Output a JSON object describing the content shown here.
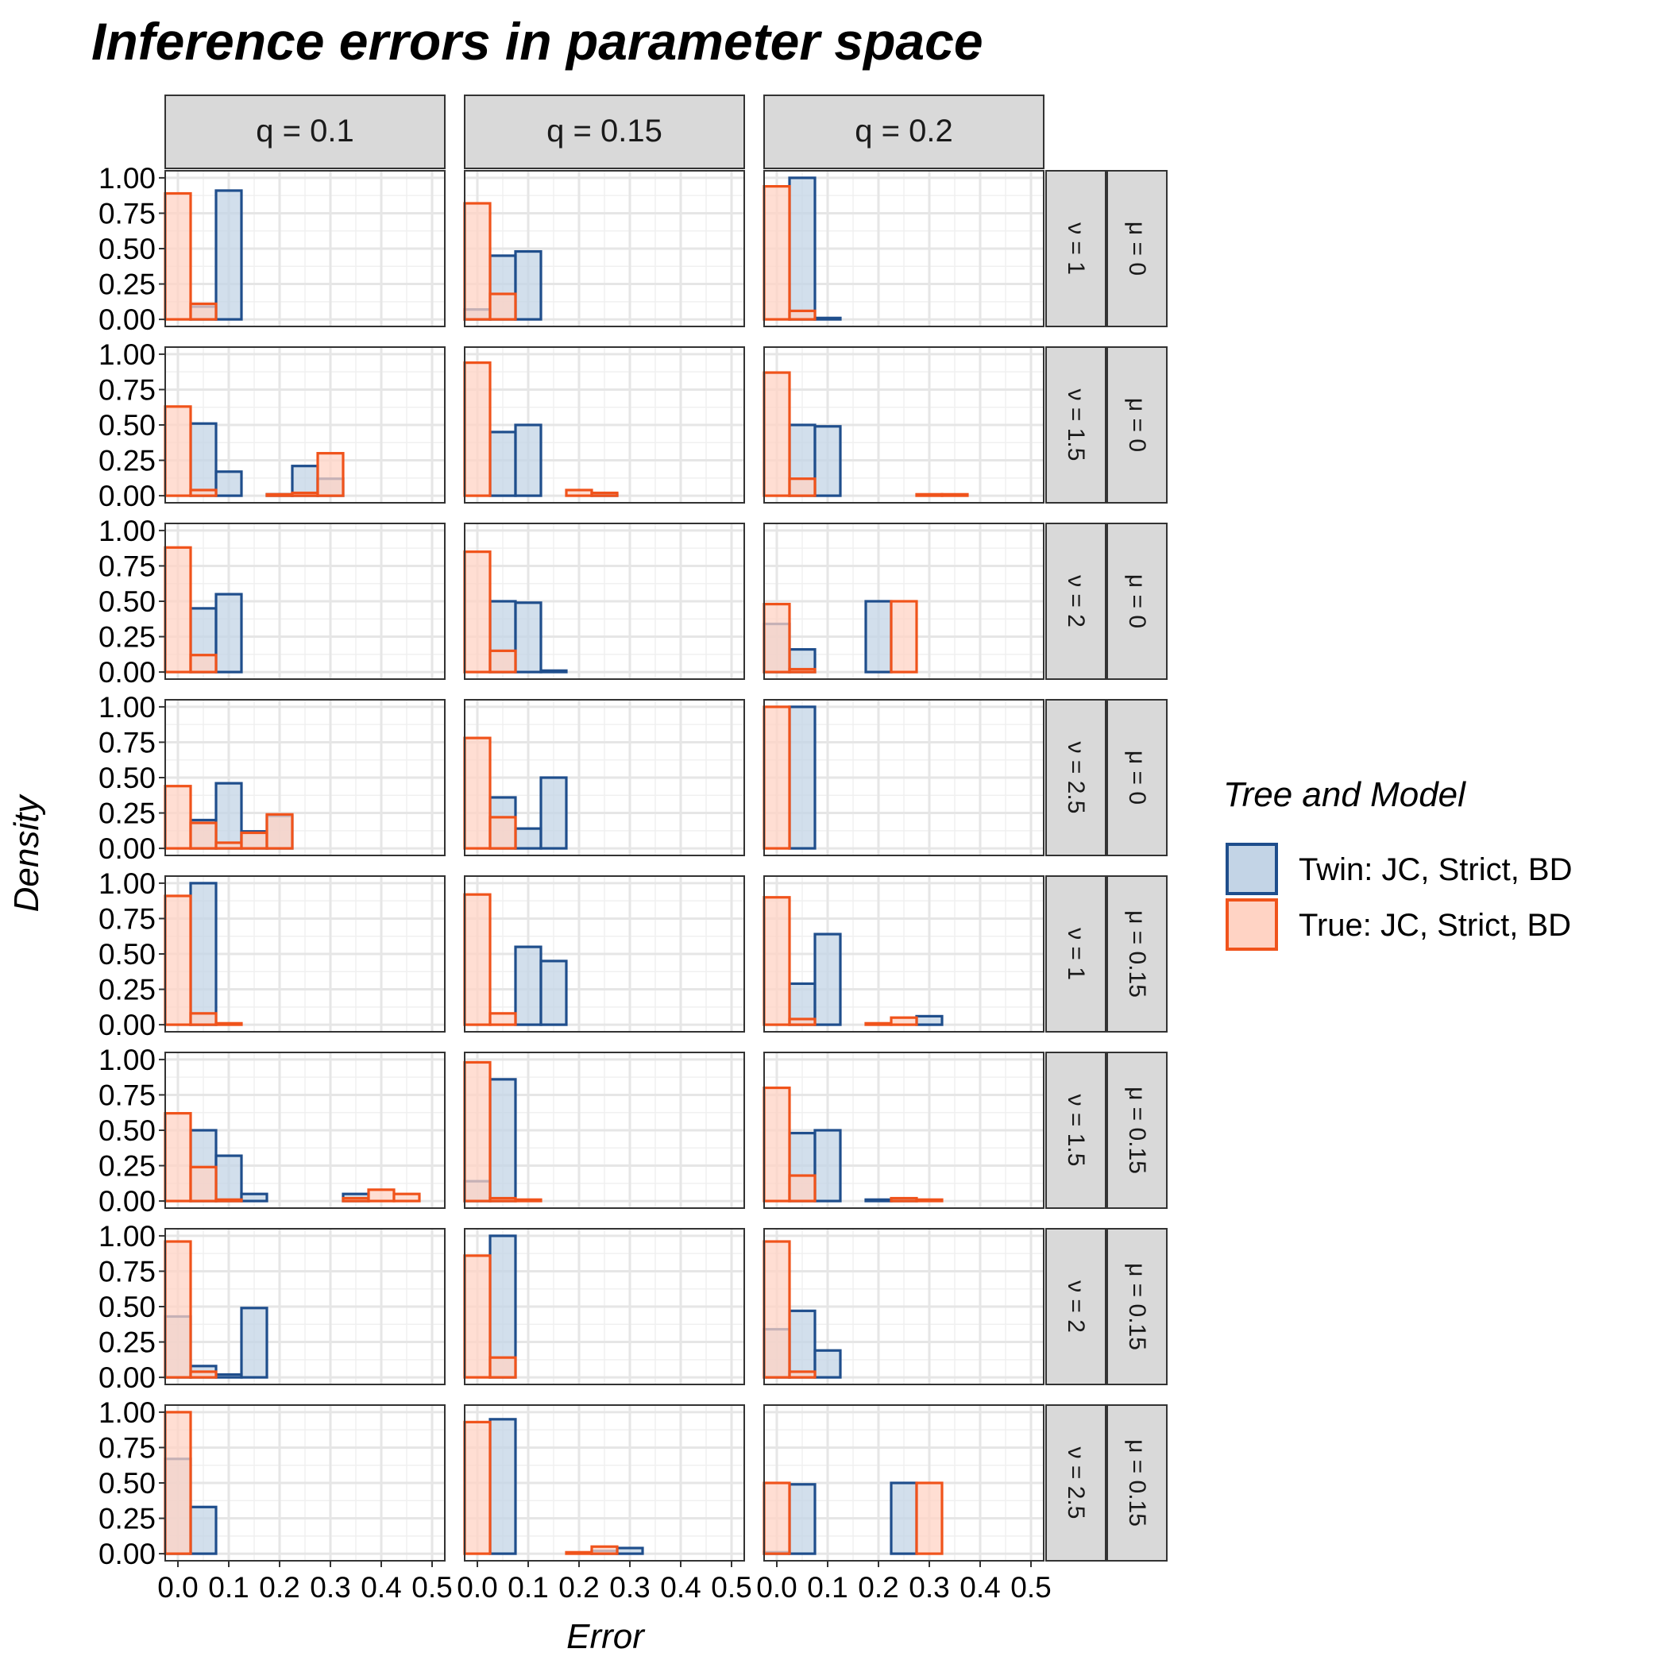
{
  "chart_data": {
    "type": "bar",
    "title": "Inference errors in parameter space",
    "xlabel": "Error",
    "ylabel": "Density",
    "x_ticks": [
      "0.0",
      "0.1",
      "0.2",
      "0.3",
      "0.4",
      "0.5"
    ],
    "y_ticks": [
      "0.00",
      "0.25",
      "0.50",
      "0.75",
      "1.00"
    ],
    "xlim": [
      -0.025,
      0.525
    ],
    "ylim": [
      -0.05,
      1.05
    ],
    "bin_edges": [
      -0.025,
      0.025,
      0.075,
      0.125,
      0.175,
      0.225,
      0.275,
      0.325,
      0.375,
      0.425,
      0.475
    ],
    "grid": true,
    "legend": {
      "title": "Tree and Model",
      "position": "right",
      "entries": [
        "Twin: JC, Strict, BD",
        "True: JC, Strict, BD"
      ]
    },
    "series": [
      {
        "name": "Twin: JC, Strict, BD",
        "fill": "#c3d4e6",
        "stroke": "#1f4e8c"
      },
      {
        "name": "True: JC, Strict, BD",
        "fill": "#ffd3c4",
        "stroke": "#f0531b"
      }
    ],
    "col_labels": [
      "q = 0.1",
      "q = 0.15",
      "q = 0.2"
    ],
    "row_labels": [
      {
        "nu": "ν = 1",
        "mu": "μ = 0"
      },
      {
        "nu": "ν = 1.5",
        "mu": "μ = 0"
      },
      {
        "nu": "ν = 2",
        "mu": "μ = 0"
      },
      {
        "nu": "ν = 2.5",
        "mu": "μ = 0"
      },
      {
        "nu": "ν = 1",
        "mu": "μ = 0.15"
      },
      {
        "nu": "ν = 1.5",
        "mu": "μ = 0.15"
      },
      {
        "nu": "ν = 2",
        "mu": "μ = 0.15"
      },
      {
        "nu": "ν = 2.5",
        "mu": "μ = 0.15"
      }
    ],
    "panels": [
      [
        {
          "twin": [
            0,
            0.09,
            0.91,
            0,
            0,
            0,
            0,
            0,
            0,
            0
          ],
          "true": [
            0.89,
            0.11,
            0,
            0,
            0,
            0,
            0,
            0,
            0,
            0
          ]
        },
        {
          "twin": [
            0.07,
            0.45,
            0.48,
            0,
            0,
            0,
            0,
            0,
            0,
            0
          ],
          "true": [
            0.82,
            0.18,
            0,
            0,
            0,
            0,
            0,
            0,
            0,
            0
          ]
        },
        {
          "twin": [
            0,
            1.0,
            0.01,
            0,
            0,
            0,
            0,
            0,
            0,
            0
          ],
          "true": [
            0.94,
            0.06,
            0,
            0,
            0,
            0,
            0,
            0,
            0,
            0
          ]
        }
      ],
      [
        {
          "twin": [
            0,
            0.51,
            0.17,
            0,
            0.01,
            0.21,
            0.12,
            0,
            0,
            0
          ],
          "true": [
            0.63,
            0.04,
            0,
            0,
            0.01,
            0.02,
            0.3,
            0,
            0,
            0
          ]
        },
        {
          "twin": [
            0,
            0.45,
            0.5,
            0,
            0,
            0.01,
            0,
            0,
            0,
            0
          ],
          "true": [
            0.94,
            0,
            0,
            0,
            0.04,
            0.02,
            0,
            0,
            0,
            0
          ]
        },
        {
          "twin": [
            0,
            0.5,
            0.49,
            0,
            0,
            0,
            0,
            0,
            0,
            0
          ],
          "true": [
            0.87,
            0.12,
            0,
            0,
            0,
            0,
            0.01,
            0.01,
            0,
            0
          ]
        }
      ],
      [
        {
          "twin": [
            0,
            0.45,
            0.55,
            0,
            0,
            0,
            0,
            0,
            0,
            0
          ],
          "true": [
            0.88,
            0.12,
            0,
            0,
            0,
            0,
            0,
            0,
            0,
            0
          ]
        },
        {
          "twin": [
            0,
            0.5,
            0.49,
            0.01,
            0,
            0,
            0,
            0,
            0,
            0
          ],
          "true": [
            0.85,
            0.15,
            0,
            0,
            0,
            0,
            0,
            0,
            0,
            0
          ]
        },
        {
          "twin": [
            0.34,
            0.16,
            0,
            0,
            0.5,
            0,
            0,
            0,
            0,
            0
          ],
          "true": [
            0.48,
            0.02,
            0,
            0,
            0,
            0.5,
            0,
            0,
            0,
            0
          ]
        }
      ],
      [
        {
          "twin": [
            0,
            0.2,
            0.46,
            0.12,
            0.23,
            0,
            0,
            0,
            0,
            0
          ],
          "true": [
            0.44,
            0.18,
            0.04,
            0.11,
            0.24,
            0,
            0,
            0,
            0,
            0
          ]
        },
        {
          "twin": [
            0,
            0.36,
            0.14,
            0.5,
            0,
            0,
            0,
            0,
            0,
            0
          ],
          "true": [
            0.78,
            0.22,
            0,
            0,
            0,
            0,
            0,
            0,
            0,
            0
          ]
        },
        {
          "twin": [
            0,
            1.0,
            0,
            0,
            0,
            0,
            0,
            0,
            0,
            0
          ],
          "true": [
            1.0,
            0,
            0,
            0,
            0,
            0,
            0,
            0,
            0,
            0
          ]
        }
      ],
      [
        {
          "twin": [
            0,
            1.0,
            0,
            0,
            0,
            0,
            0,
            0,
            0,
            0
          ],
          "true": [
            0.91,
            0.08,
            0.01,
            0,
            0,
            0,
            0,
            0,
            0,
            0
          ]
        },
        {
          "twin": [
            0,
            0,
            0.55,
            0.45,
            0,
            0,
            0,
            0,
            0,
            0
          ],
          "true": [
            0.92,
            0.08,
            0,
            0,
            0,
            0,
            0,
            0,
            0,
            0
          ]
        },
        {
          "twin": [
            0,
            0.29,
            0.64,
            0,
            0,
            0,
            0.06,
            0,
            0,
            0
          ],
          "true": [
            0.9,
            0.04,
            0,
            0,
            0.01,
            0.05,
            0,
            0,
            0,
            0
          ]
        }
      ],
      [
        {
          "twin": [
            0,
            0.5,
            0.32,
            0.05,
            0,
            0,
            0,
            0.05,
            0,
            0
          ],
          "true": [
            0.62,
            0.24,
            0.01,
            0,
            0,
            0,
            0,
            0.02,
            0.08,
            0.05
          ]
        },
        {
          "twin": [
            0.14,
            0.86,
            0,
            0,
            0,
            0,
            0,
            0,
            0,
            0
          ],
          "true": [
            0.98,
            0.02,
            0.01,
            0,
            0,
            0,
            0,
            0,
            0,
            0
          ]
        },
        {
          "twin": [
            0,
            0.48,
            0.5,
            0,
            0.01,
            0.01,
            0,
            0,
            0,
            0
          ],
          "true": [
            0.8,
            0.18,
            0,
            0,
            0,
            0.02,
            0.01,
            0,
            0,
            0
          ]
        }
      ],
      [
        {
          "twin": [
            0.43,
            0.08,
            0.02,
            0.49,
            0,
            0,
            0,
            0,
            0,
            0
          ],
          "true": [
            0.96,
            0.04,
            0,
            0,
            0,
            0,
            0,
            0,
            0,
            0
          ]
        },
        {
          "twin": [
            0,
            1.0,
            0,
            0,
            0,
            0,
            0,
            0,
            0,
            0
          ],
          "true": [
            0.86,
            0.14,
            0,
            0,
            0,
            0,
            0,
            0,
            0,
            0
          ]
        },
        {
          "twin": [
            0.34,
            0.47,
            0.19,
            0,
            0,
            0,
            0,
            0,
            0,
            0
          ],
          "true": [
            0.96,
            0.04,
            0,
            0,
            0,
            0,
            0,
            0,
            0,
            0
          ]
        }
      ],
      [
        {
          "twin": [
            0.67,
            0.33,
            0,
            0,
            0,
            0,
            0,
            0,
            0,
            0
          ],
          "true": [
            1.0,
            0,
            0,
            0,
            0,
            0,
            0,
            0,
            0,
            0
          ]
        },
        {
          "twin": [
            0,
            0.95,
            0,
            0,
            0,
            0.02,
            0.04,
            0,
            0,
            0
          ],
          "true": [
            0.93,
            0,
            0,
            0,
            0.01,
            0.05,
            0,
            0,
            0,
            0
          ]
        },
        {
          "twin": [
            0.01,
            0.49,
            0,
            0,
            0,
            0.5,
            0,
            0,
            0,
            0
          ],
          "true": [
            0.5,
            0,
            0,
            0,
            0,
            0,
            0.5,
            0,
            0,
            0
          ]
        }
      ]
    ]
  }
}
